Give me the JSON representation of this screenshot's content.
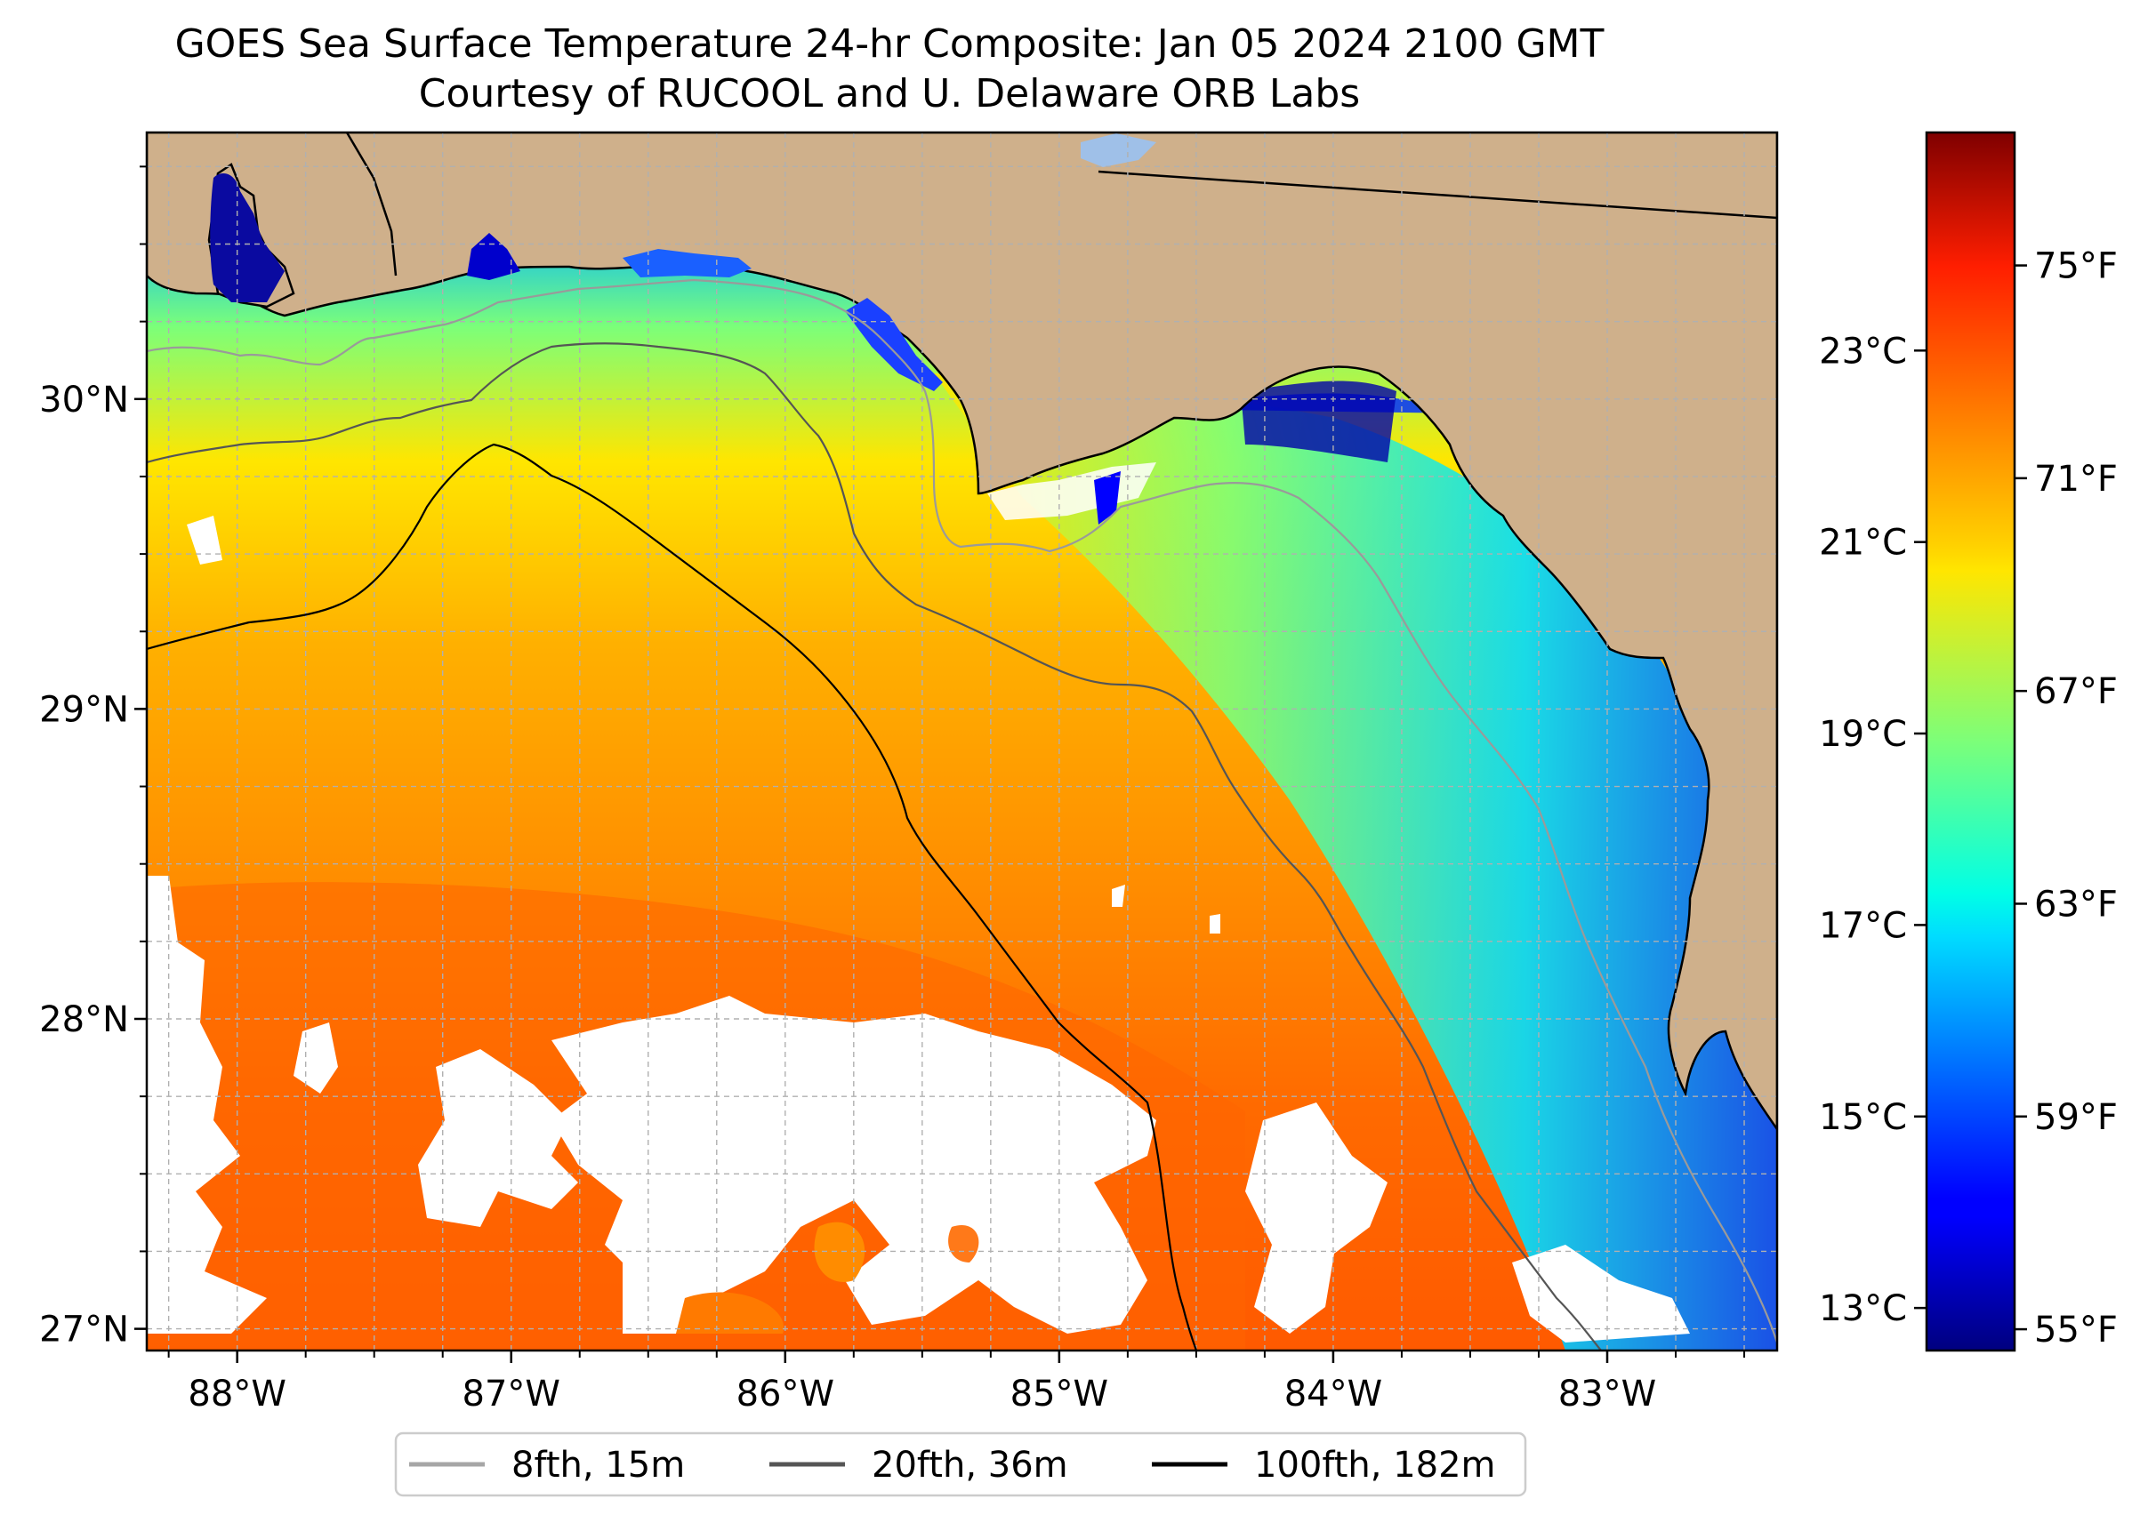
{
  "title": "GOES Sea Surface Temperature 24-hr Composite: Jan 05 2024 2100 GMT",
  "subtitle": "Courtesy of RUCOOL and U. Delaware ORB Labs",
  "map": {
    "lon_range": [
      -88.33,
      -82.38
    ],
    "lat_range": [
      26.93,
      30.86
    ],
    "lon_ticks": [
      "88°W",
      "87°W",
      "86°W",
      "85°W",
      "84°W",
      "83°W"
    ],
    "lon_tick_values": [
      -88,
      -87,
      -86,
      -85,
      -84,
      -83
    ],
    "lat_ticks": [
      "30°N",
      "29°N",
      "28°N",
      "27°N"
    ],
    "lat_tick_values": [
      30,
      29,
      28,
      27
    ],
    "grid": true,
    "land_color": "#cfb08b",
    "missing_color": "#ffffff"
  },
  "colorbar": {
    "min_f": 54.6,
    "max_f": 77.5,
    "f_ticks": [
      "75°F",
      "71°F",
      "67°F",
      "63°F",
      "59°F",
      "55°F"
    ],
    "f_values": [
      75,
      71,
      67,
      63,
      59,
      55
    ],
    "c_ticks": [
      "23°C",
      "21°C",
      "19°C",
      "17°C",
      "15°C",
      "13°C"
    ],
    "c_values": [
      23,
      21,
      19,
      17,
      15,
      13
    ],
    "colormap": "jet"
  },
  "legend": {
    "items": [
      {
        "label": "8fth, 15m",
        "color": "#a6a6a6"
      },
      {
        "label": "20fth, 36m",
        "color": "#555555"
      },
      {
        "label": "100fth, 182m",
        "color": "#000000"
      }
    ]
  }
}
